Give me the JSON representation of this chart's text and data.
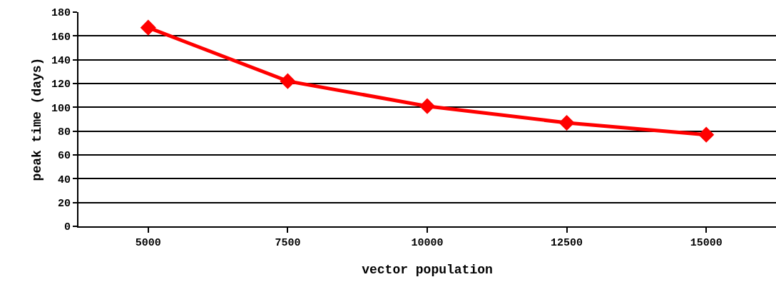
{
  "chart_data": {
    "type": "line",
    "xlabel": "vector population",
    "ylabel": "peak time (days)",
    "categories": [
      "5000",
      "7500",
      "10000",
      "12500",
      "15000"
    ],
    "series": [
      {
        "color": "#ff0000",
        "values": [
          167,
          122,
          101,
          87,
          77
        ]
      }
    ],
    "ylim": [
      0,
      180
    ],
    "yticks": [
      0,
      20,
      40,
      60,
      80,
      100,
      120,
      140,
      160,
      180
    ],
    "grid": "y",
    "legend": false,
    "marker": "diamond",
    "line_style": "solid"
  }
}
